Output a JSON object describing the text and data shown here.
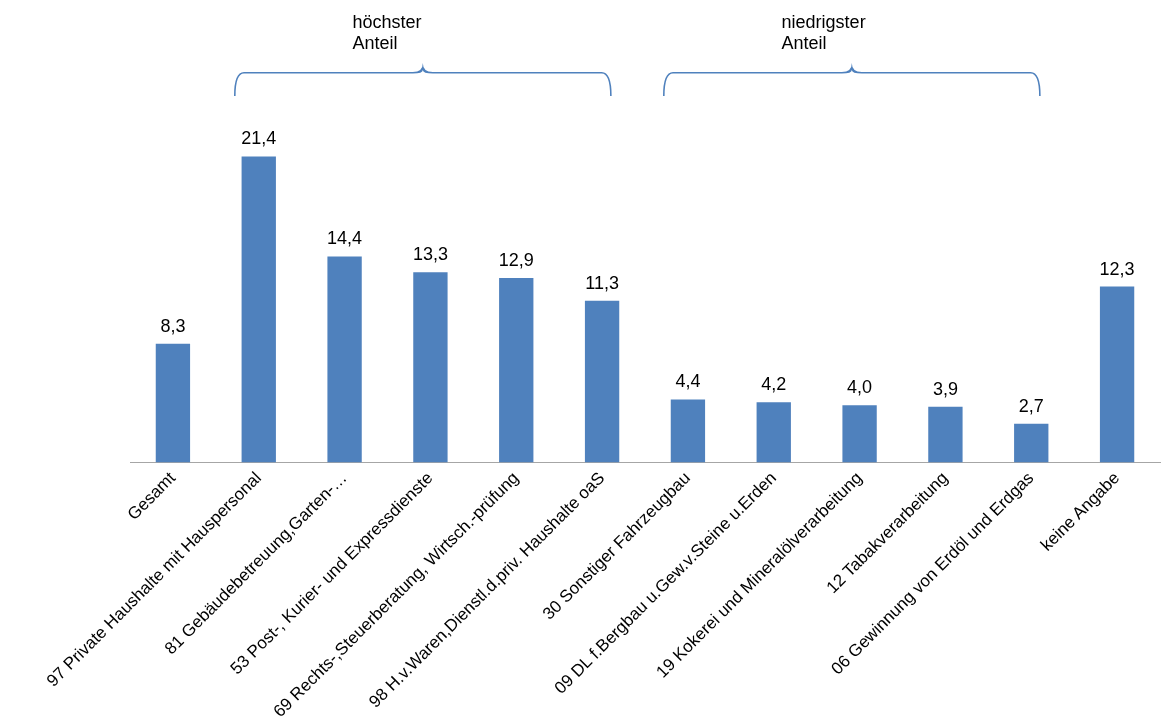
{
  "chart_data": {
    "type": "bar",
    "categories": [
      "Gesamt",
      "97 Private Haushalte mit Hauspersonal",
      "81 Gebäudebetreuung,Garten-…",
      "53 Post-, Kurier- und Expressdienste",
      "69 Rechts-,Steuerberatung, Wirtsch.-prüfung",
      "98 H.v.Waren,Dienstl.d.priv. Haushalte oaS",
      "30 Sonstiger Fahrzeugbau",
      "09 DL f.Bergbau u.Gew.v.Steine u.Erden",
      "19 Kokerei und Mineralölverarbeitung",
      "12 Tabakverarbeitung",
      "06 Gewinnung von Erdöl und Erdgas",
      "keine Angabe"
    ],
    "values": [
      8.3,
      21.4,
      14.4,
      13.3,
      12.9,
      11.3,
      4.4,
      4.2,
      4.0,
      3.9,
      2.7,
      12.3
    ],
    "value_labels": [
      "8,3",
      "21,4",
      "14,4",
      "13,3",
      "12,9",
      "11,3",
      "4,4",
      "4,2",
      "4,0",
      "3,9",
      "2,7",
      "12,3"
    ],
    "color": "#4f81bd",
    "annotations": [
      "höchster Anteil",
      "niedrigster Anteil"
    ],
    "grid": false,
    "legend": false,
    "tick_labels": "x"
  }
}
